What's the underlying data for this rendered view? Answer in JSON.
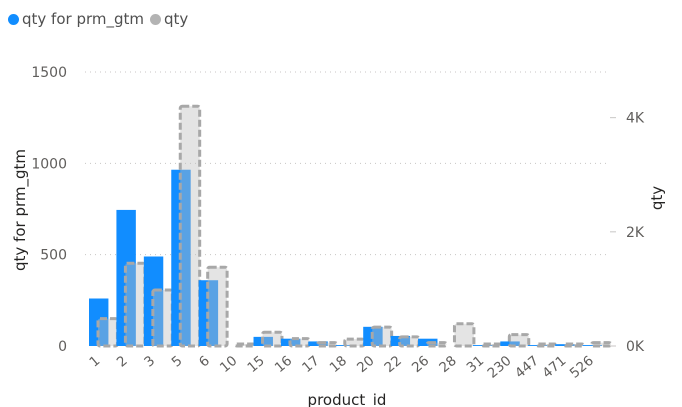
{
  "legend": {
    "items": [
      {
        "label": "qty for prm_gtm",
        "color": "#118DFF"
      },
      {
        "label": "qty",
        "color": "#B3B3B3"
      }
    ]
  },
  "chart_data": {
    "type": "bar",
    "xlabel": "product_id",
    "ylabel_left": "qty for prm_gtm",
    "ylabel_right": "qty",
    "ylim_left": [
      0,
      1500
    ],
    "ylim_right": [
      0,
      4800
    ],
    "yticks_left": [
      "0",
      "500",
      "1000",
      "1500"
    ],
    "yticks_left_values": [
      0,
      500,
      1000,
      1500
    ],
    "yticks_right": [
      "0K",
      "2K",
      "4K"
    ],
    "yticks_right_values": [
      0,
      2000,
      4000
    ],
    "grid": true,
    "categories": [
      "1",
      "2",
      "3",
      "5",
      "6",
      "10",
      "15",
      "16",
      "17",
      "18",
      "20",
      "22",
      "26",
      "28",
      "31",
      "230",
      "447",
      "471",
      "526"
    ],
    "x_tick_labels": [
      "1",
      "2",
      "3",
      "5",
      "6",
      "10",
      "15",
      "16",
      "17",
      "18",
      "20",
      "22",
      "26",
      "28",
      "31",
      "230",
      "447",
      "471",
      "526"
    ],
    "series": [
      {
        "name": "qty for prm_gtm",
        "color": "#118DFF",
        "axis": "left",
        "values": [
          260,
          745,
          490,
          965,
          360,
          0,
          50,
          40,
          25,
          5,
          105,
          55,
          40,
          0,
          5,
          25,
          5,
          10,
          5
        ]
      },
      {
        "name": "qty",
        "color": "#B3B3B3",
        "axis": "right",
        "values": [
          480,
          1450,
          980,
          4200,
          1380,
          20,
          240,
          130,
          60,
          120,
          330,
          160,
          60,
          390,
          20,
          200,
          30,
          30,
          60
        ]
      }
    ]
  }
}
